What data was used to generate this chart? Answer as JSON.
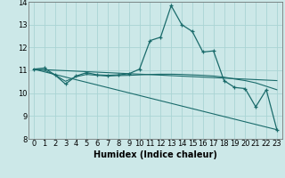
{
  "xlabel": "Humidex (Indice chaleur)",
  "background_color": "#cce8e8",
  "grid_color": "#aad4d4",
  "line_color": "#1a6b6b",
  "xlim": [
    -0.5,
    23.5
  ],
  "ylim": [
    8,
    14
  ],
  "xticks": [
    0,
    1,
    2,
    3,
    4,
    5,
    6,
    7,
    8,
    9,
    10,
    11,
    12,
    13,
    14,
    15,
    16,
    17,
    18,
    19,
    20,
    21,
    22,
    23
  ],
  "yticks": [
    8,
    9,
    10,
    11,
    12,
    13,
    14
  ],
  "line1_x": [
    0,
    1,
    2,
    3,
    4,
    5,
    6,
    7,
    8,
    9,
    10,
    11,
    12,
    13,
    14,
    15,
    16,
    17,
    18,
    19,
    20,
    21,
    22,
    23
  ],
  "line1_y": [
    11.05,
    11.1,
    10.8,
    10.4,
    10.75,
    10.9,
    10.8,
    10.78,
    10.8,
    10.85,
    11.05,
    12.3,
    12.45,
    13.83,
    13.0,
    12.7,
    11.8,
    11.85,
    10.55,
    10.25,
    10.2,
    9.4,
    10.15,
    8.4
  ],
  "line2_x": [
    0,
    1,
    2,
    3,
    4,
    5,
    6,
    7,
    8,
    9,
    10,
    11,
    12,
    13,
    14,
    15,
    16,
    17,
    18,
    19,
    20,
    21,
    22,
    23
  ],
  "line2_y": [
    11.05,
    11.0,
    10.8,
    10.52,
    10.72,
    10.82,
    10.78,
    10.75,
    10.77,
    10.78,
    10.8,
    10.82,
    10.83,
    10.83,
    10.82,
    10.8,
    10.78,
    10.75,
    10.7,
    10.62,
    10.55,
    10.45,
    10.3,
    10.15
  ],
  "line3_x": [
    0,
    23
  ],
  "line3_y": [
    11.05,
    10.55
  ],
  "line4_x": [
    0,
    23
  ],
  "line4_y": [
    11.05,
    8.4
  ],
  "xlabel_fontsize": 7,
  "tick_fontsize": 6
}
